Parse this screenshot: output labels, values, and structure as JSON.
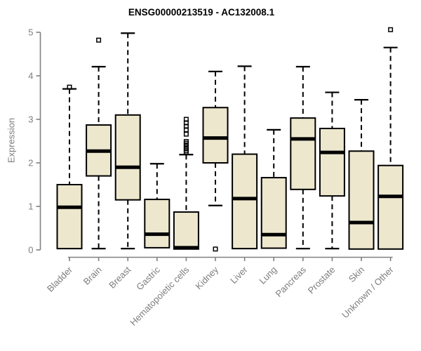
{
  "title": "ENSG00000213519 - AC132008.1",
  "chart_data": {
    "type": "boxplot",
    "title": "ENSG00000213519 - AC132008.1",
    "xlabel": "",
    "ylabel": "Expression",
    "ylim": [
      0,
      5
    ],
    "yticks": [
      "0",
      "1",
      "2",
      "3",
      "4",
      "5"
    ],
    "grid": false,
    "legend": false,
    "categories": [
      "Bladder",
      "Brain",
      "Breast",
      "Gastric",
      "Hematopoietic cells",
      "Kidney",
      "Liver",
      "Lung",
      "Pancreas",
      "Prostate",
      "Skin",
      "Unknown / Other"
    ],
    "series": [
      {
        "name": "Bladder",
        "q1": 0.03,
        "median": 0.98,
        "q3": 1.5,
        "whisker_low": 0.03,
        "whisker_high": 3.7,
        "outliers": [
          3.74
        ]
      },
      {
        "name": "Brain",
        "q1": 1.7,
        "median": 2.27,
        "q3": 2.87,
        "whisker_low": 0.03,
        "whisker_high": 4.21,
        "outliers": [
          4.82
        ]
      },
      {
        "name": "Breast",
        "q1": 1.15,
        "median": 1.9,
        "q3": 3.1,
        "whisker_low": 0.03,
        "whisker_high": 4.98,
        "outliers": []
      },
      {
        "name": "Gastric",
        "q1": 0.05,
        "median": 0.36,
        "q3": 1.16,
        "whisker_low": 0.05,
        "whisker_high": 1.98,
        "outliers": []
      },
      {
        "name": "Hematopoietic cells",
        "q1": 0.02,
        "median": 0.05,
        "q3": 0.87,
        "whisker_low": 0.02,
        "whisker_high": 2.19,
        "outliers": [
          2.25,
          2.29,
          2.33,
          2.37,
          2.41,
          2.45,
          2.49,
          2.66,
          2.76,
          2.84,
          2.92,
          3.0
        ]
      },
      {
        "name": "Kidney",
        "q1": 2.0,
        "median": 2.57,
        "q3": 3.27,
        "whisker_low": 1.02,
        "whisker_high": 4.1,
        "outliers": [
          0.02
        ]
      },
      {
        "name": "Liver",
        "q1": 0.03,
        "median": 1.18,
        "q3": 2.2,
        "whisker_low": 0.03,
        "whisker_high": 4.22,
        "outliers": []
      },
      {
        "name": "Lung",
        "q1": 0.04,
        "median": 0.35,
        "q3": 1.66,
        "whisker_low": 0.04,
        "whisker_high": 2.76,
        "outliers": []
      },
      {
        "name": "Pancreas",
        "q1": 1.39,
        "median": 2.55,
        "q3": 3.03,
        "whisker_low": 0.03,
        "whisker_high": 4.21,
        "outliers": []
      },
      {
        "name": "Prostate",
        "q1": 1.24,
        "median": 2.24,
        "q3": 2.79,
        "whisker_low": 0.03,
        "whisker_high": 3.62,
        "outliers": []
      },
      {
        "name": "Skin",
        "q1": 0.02,
        "median": 0.63,
        "q3": 2.27,
        "whisker_low": 0.02,
        "whisker_high": 3.45,
        "outliers": []
      },
      {
        "name": "Unknown / Other",
        "q1": 0.02,
        "median": 1.23,
        "q3": 1.94,
        "whisker_low": 0.02,
        "whisker_high": 4.65,
        "outliers": [
          5.06
        ]
      }
    ],
    "colors": {
      "box_fill": "#EDE7CE",
      "box_border": "#000000",
      "median": "#000000",
      "whisker": "#000000",
      "outlier": "#000000",
      "axis": "#808080",
      "tick_label": "#7d7d7d",
      "title": "#000000"
    }
  }
}
